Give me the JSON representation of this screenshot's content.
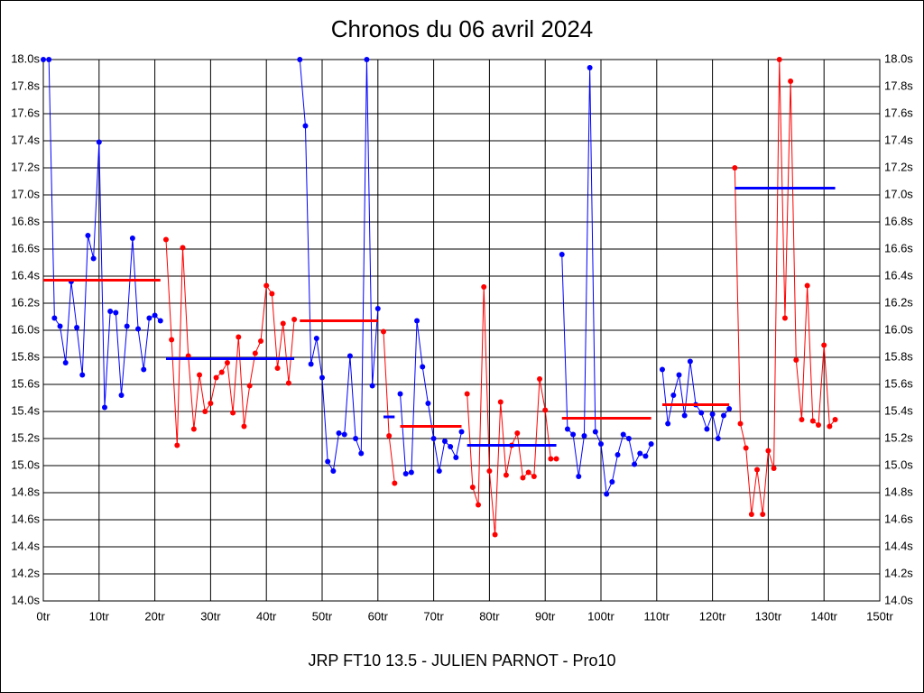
{
  "chart_data": {
    "type": "line",
    "title": "Chronos du 06 avril 2024",
    "x_label": "JRP FT10 13.5 - JULIEN PARNOT - Pro10",
    "xlim": [
      0,
      150
    ],
    "xticks": [
      {
        "value": 0,
        "label": "0tr"
      },
      {
        "value": 10,
        "label": "10tr"
      },
      {
        "value": 20,
        "label": "20tr"
      },
      {
        "value": 30,
        "label": "30tr"
      },
      {
        "value": 40,
        "label": "40tr"
      },
      {
        "value": 50,
        "label": "50tr"
      },
      {
        "value": 60,
        "label": "60tr"
      },
      {
        "value": 70,
        "label": "70tr"
      },
      {
        "value": 80,
        "label": "80tr"
      },
      {
        "value": 90,
        "label": "90tr"
      },
      {
        "value": 100,
        "label": "100tr"
      },
      {
        "value": 110,
        "label": "110tr"
      },
      {
        "value": 120,
        "label": "120tr"
      },
      {
        "value": 130,
        "label": "130tr"
      },
      {
        "value": 140,
        "label": "140tr"
      },
      {
        "value": 150,
        "label": "150tr"
      }
    ],
    "ylim": [
      14,
      18
    ],
    "yticks": [
      {
        "value": 14,
        "label": "14.0s"
      },
      {
        "value": 14.2,
        "label": "14.2s"
      },
      {
        "value": 14.4,
        "label": "14.4s"
      },
      {
        "value": 14.6,
        "label": "14.6s"
      },
      {
        "value": 14.8,
        "label": "14.8s"
      },
      {
        "value": 15,
        "label": "15.0s"
      },
      {
        "value": 15.2,
        "label": "15.2s"
      },
      {
        "value": 15.4,
        "label": "15.4s"
      },
      {
        "value": 15.6,
        "label": "15.6s"
      },
      {
        "value": 15.8,
        "label": "15.8s"
      },
      {
        "value": 16,
        "label": "16.0s"
      },
      {
        "value": 16.2,
        "label": "16.2s"
      },
      {
        "value": 16.4,
        "label": "16.4s"
      },
      {
        "value": 16.6,
        "label": "16.6s"
      },
      {
        "value": 16.8,
        "label": "16.8s"
      },
      {
        "value": 17,
        "label": "17.0s"
      },
      {
        "value": 17.2,
        "label": "17.2s"
      },
      {
        "value": 17.4,
        "label": "17.4s"
      },
      {
        "value": 17.6,
        "label": "17.6s"
      },
      {
        "value": 17.8,
        "label": "17.8s"
      },
      {
        "value": 18,
        "label": "18.0s"
      }
    ],
    "grid": true,
    "series": [
      {
        "color": "#0000ff",
        "x": [
          0,
          1,
          2,
          3,
          4,
          5,
          6,
          7,
          8,
          9,
          10,
          11,
          12,
          13,
          14,
          15,
          16,
          17,
          18,
          19,
          20,
          21
        ],
        "values": [
          18.0,
          18.0,
          16.09,
          16.03,
          15.76,
          16.36,
          16.02,
          15.67,
          16.7,
          16.53,
          17.39,
          15.43,
          16.14,
          16.13,
          15.52,
          16.03,
          16.68,
          16.01,
          15.71,
          16.09,
          16.11,
          16.07
        ]
      },
      {
        "color": "#ff0000",
        "x": [
          22,
          23,
          24,
          25,
          26,
          27,
          28,
          29,
          30,
          31,
          32,
          33,
          34,
          35,
          36,
          37,
          38,
          39,
          40,
          41,
          42,
          43,
          44,
          45
        ],
        "values": [
          16.67,
          15.93,
          15.15,
          16.61,
          15.81,
          15.27,
          15.67,
          15.4,
          15.46,
          15.65,
          15.69,
          15.76,
          15.39,
          15.95,
          15.29,
          15.59,
          15.83,
          15.92,
          16.33,
          16.27,
          15.72,
          16.05,
          15.61,
          16.08
        ]
      },
      {
        "color": "#0000ff",
        "x": [
          46,
          47,
          48,
          49,
          50,
          51,
          52,
          53,
          54,
          55,
          56,
          57,
          58,
          59,
          60
        ],
        "values": [
          18.0,
          17.51,
          15.75,
          15.94,
          15.65,
          15.03,
          14.96,
          15.24,
          15.23,
          15.81,
          15.2,
          15.09,
          18.0,
          15.59,
          16.16
        ]
      },
      {
        "color": "#ff0000",
        "x": [
          61,
          62,
          63
        ],
        "values": [
          15.99,
          15.22,
          14.87
        ]
      },
      {
        "color": "#0000ff",
        "x": [
          64,
          65,
          66,
          67,
          68,
          69,
          70,
          71,
          72,
          73,
          74,
          75
        ],
        "values": [
          15.53,
          14.94,
          14.95,
          16.07,
          15.73,
          15.46,
          15.2,
          14.96,
          15.18,
          15.14,
          15.06,
          15.25
        ]
      },
      {
        "color": "#ff0000",
        "x": [
          76,
          77,
          78,
          79,
          80,
          81,
          82,
          83,
          84,
          85,
          86,
          87,
          88,
          89,
          90,
          91,
          92
        ],
        "values": [
          15.53,
          14.84,
          14.71,
          16.32,
          14.96,
          14.49,
          15.47,
          14.93,
          15.15,
          15.24,
          14.91,
          14.95,
          14.92,
          15.64,
          15.41,
          15.05,
          15.05
        ]
      },
      {
        "color": "#0000ff",
        "x": [
          93,
          94,
          95,
          96,
          97,
          98,
          99,
          100,
          101,
          102,
          103,
          104,
          105,
          106,
          107,
          108,
          109
        ],
        "values": [
          16.56,
          15.27,
          15.23,
          14.92,
          15.22,
          17.94,
          15.25,
          15.16,
          14.79,
          14.88,
          15.08,
          15.23,
          15.2,
          15.01,
          15.09,
          15.07,
          15.16
        ]
      },
      {
        "color": "#0000ff",
        "x": [
          111,
          112,
          113,
          114,
          115,
          116,
          117,
          118,
          119,
          120,
          121,
          122,
          123
        ],
        "values": [
          15.71,
          15.31,
          15.52,
          15.67,
          15.37,
          15.77,
          15.45,
          15.39,
          15.27,
          15.38,
          15.2,
          15.37,
          15.42
        ]
      },
      {
        "color": "#ff0000",
        "x": [
          124,
          125,
          126,
          127,
          128,
          129,
          130,
          131,
          132,
          133,
          134,
          135,
          136,
          137,
          138,
          139,
          140,
          141,
          142
        ],
        "values": [
          17.2,
          15.31,
          15.13,
          14.64,
          14.97,
          14.64,
          15.11,
          14.98,
          18.0,
          16.09,
          17.84,
          15.78,
          15.34,
          16.33,
          15.33,
          15.3,
          15.89,
          15.29,
          15.34
        ]
      }
    ],
    "means": [
      {
        "color": "#ff0000",
        "x": [
          0,
          21
        ],
        "value": 16.37
      },
      {
        "color": "#0000ff",
        "x": [
          22,
          45
        ],
        "value": 15.79
      },
      {
        "color": "#ff0000",
        "x": [
          46,
          60
        ],
        "value": 16.07
      },
      {
        "color": "#0000ff",
        "x": [
          61,
          63
        ],
        "value": 15.36
      },
      {
        "color": "#ff0000",
        "x": [
          64,
          75
        ],
        "value": 15.29
      },
      {
        "color": "#0000ff",
        "x": [
          76,
          92
        ],
        "value": 15.15
      },
      {
        "color": "#ff0000",
        "x": [
          93,
          109
        ],
        "value": 15.35
      },
      {
        "color": "#ff0000",
        "x": [
          111,
          123
        ],
        "value": 15.45
      },
      {
        "color": "#0000ff",
        "x": [
          124,
          142
        ],
        "value": 17.05
      }
    ]
  }
}
